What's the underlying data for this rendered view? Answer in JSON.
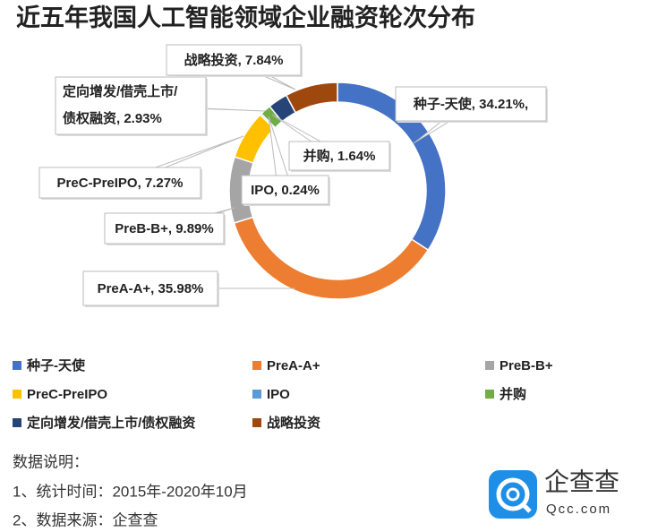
{
  "chart_data": {
    "type": "donut",
    "title": "近五年我国人工智能领域企业融资轮次分布",
    "categories": [
      "种子-天使",
      "PreA-A+",
      "PreB-B+",
      "PreC-PreIPO",
      "IPO",
      "并购",
      "定向增发/借壳上市/债权融资",
      "战略投资"
    ],
    "values": [
      34.21,
      35.98,
      9.89,
      7.27,
      0.24,
      1.64,
      2.93,
      7.84
    ],
    "value_labels": [
      "种子-天使, 34.21%,",
      "PreA-A+, 35.98%",
      "PreB-B+, 9.89%",
      "PreC-PreIPO, 7.27%",
      "IPO, 0.24%",
      "并购, 1.64%",
      [
        "定向增发/借壳上市/",
        "债权融资, 2.93%"
      ],
      "战略投资, 7.84%"
    ],
    "colors": [
      "#4472c4",
      "#ed7d31",
      "#a5a5a5",
      "#ffc000",
      "#5b9bd5",
      "#70ad47",
      "#264478",
      "#9e480e"
    ],
    "legend": "bottom"
  },
  "notes": [
    "数据说明：",
    "1、统计时间：2015年-2020年10月",
    "2、数据来源：企查查"
  ],
  "logo": {
    "name": "企查查",
    "url": "Qcc.com"
  }
}
